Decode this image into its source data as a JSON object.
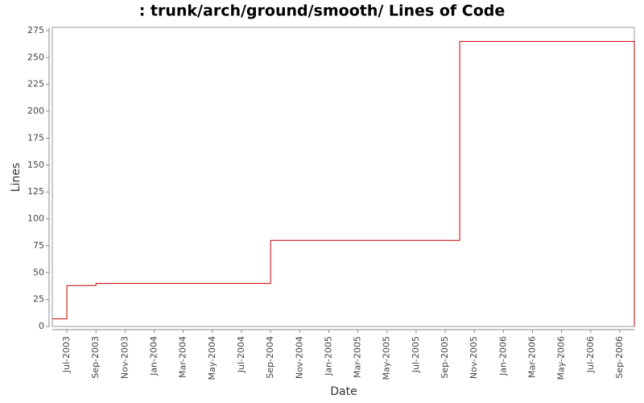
{
  "chart_data": {
    "type": "step",
    "title": ": trunk/arch/ground/smooth/ Lines of Code",
    "x_label": "Date",
    "y_label": "Lines",
    "x": [
      "2003-06",
      "2003-07",
      "2003-07",
      "2003-07",
      "2003-09",
      "2004-09",
      "2005-10",
      "2006-10"
    ],
    "series": [
      {
        "name": "Lines",
        "color": "#cc0000",
        "values": [
          7,
          15,
          35,
          38,
          40,
          80,
          265,
          0
        ]
      }
    ],
    "xlim": [
      "2003-06",
      "2006-10"
    ],
    "xticks": [
      {
        "value": "2003-07",
        "label": "Jul-2003"
      },
      {
        "value": "2003-09",
        "label": "Sep-2003"
      },
      {
        "value": "2003-11",
        "label": "Nov-2003"
      },
      {
        "value": "2004-01",
        "label": "Jan-2004"
      },
      {
        "value": "2004-03",
        "label": "Mar-2004"
      },
      {
        "value": "2004-05",
        "label": "May-2004"
      },
      {
        "value": "2004-07",
        "label": "Jul-2004"
      },
      {
        "value": "2004-09",
        "label": "Sep-2004"
      },
      {
        "value": "2004-11",
        "label": "Nov-2004"
      },
      {
        "value": "2005-01",
        "label": "Jan-2005"
      },
      {
        "value": "2005-03",
        "label": "Mar-2005"
      },
      {
        "value": "2005-05",
        "label": "May-2005"
      },
      {
        "value": "2005-07",
        "label": "Jul-2005"
      },
      {
        "value": "2005-09",
        "label": "Sep-2005"
      },
      {
        "value": "2005-11",
        "label": "Nov-2005"
      },
      {
        "value": "2006-01",
        "label": "Jan-2006"
      },
      {
        "value": "2006-03",
        "label": "Mar-2006"
      },
      {
        "value": "2006-05",
        "label": "May-2006"
      },
      {
        "value": "2006-07",
        "label": "Jul-2006"
      },
      {
        "value": "2006-09",
        "label": "Sep-2006"
      }
    ],
    "ylim": [
      0,
      278
    ],
    "yticks": [
      0,
      25,
      50,
      75,
      100,
      125,
      150,
      175,
      200,
      225,
      250,
      275
    ],
    "grid": false
  }
}
